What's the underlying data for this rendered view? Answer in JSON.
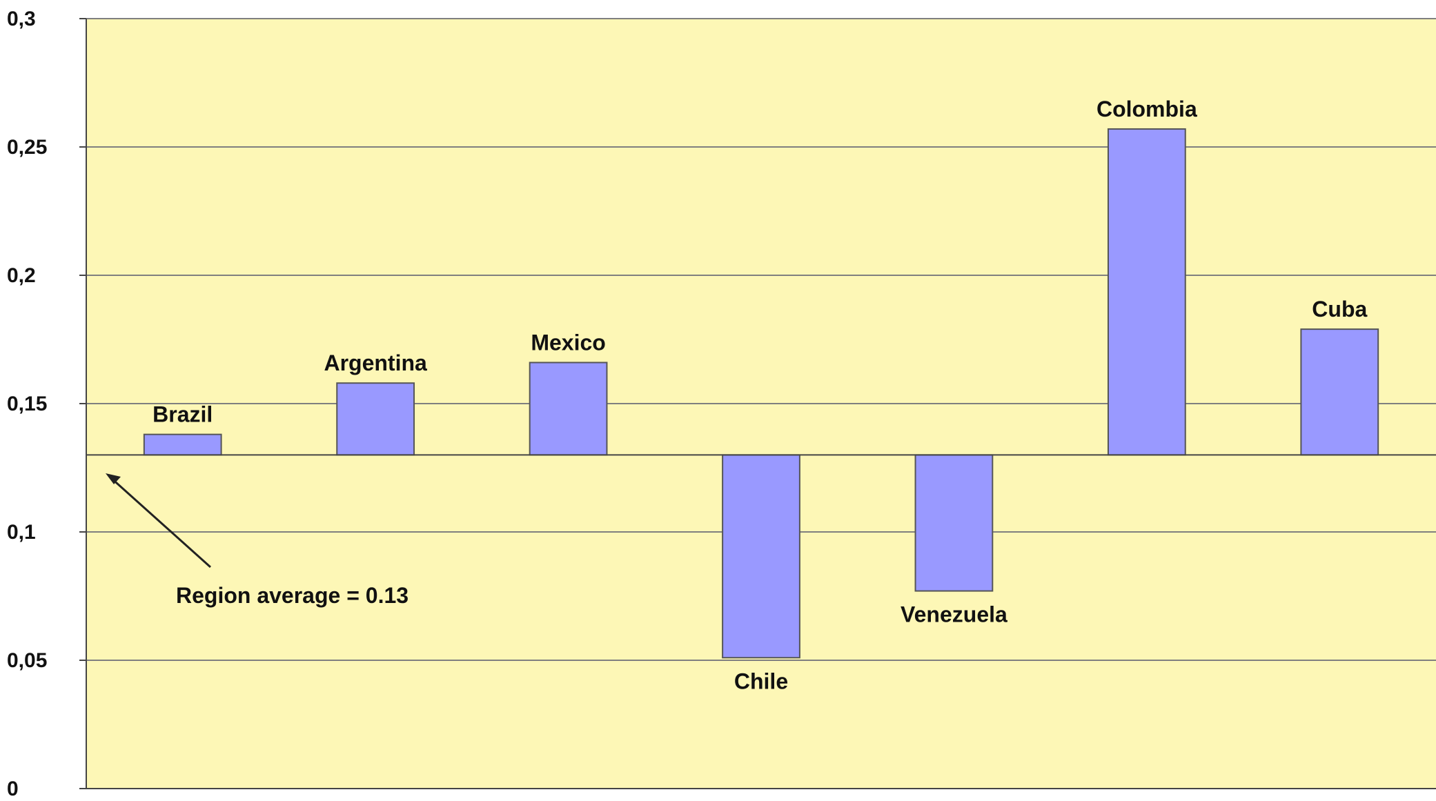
{
  "chart_data": {
    "type": "bar",
    "title": "",
    "xlabel": "",
    "ylabel": "",
    "ylim": [
      0,
      0.3
    ],
    "yticks": [
      0,
      0.05,
      0.1,
      0.15,
      0.2,
      0.25,
      0.3
    ],
    "ytick_labels": [
      "0",
      "0,05",
      "0,1",
      "0,15",
      "0,2",
      "0,25",
      "0,3"
    ],
    "grid": true,
    "baseline": 0.13,
    "categories": [
      "Brazil",
      "Argentina",
      "Mexico",
      "Chile",
      "Venezuela",
      "Colombia",
      "Cuba"
    ],
    "values": [
      0.138,
      0.158,
      0.166,
      0.051,
      0.077,
      0.257,
      0.179
    ],
    "annotation": "Region average = 0.13",
    "colors": {
      "plot_background": "#fdf7b6",
      "bar_fill": "#9999ff",
      "bar_edge": "#555555",
      "grid": "#7f7f7f",
      "axis": "#444444"
    }
  }
}
